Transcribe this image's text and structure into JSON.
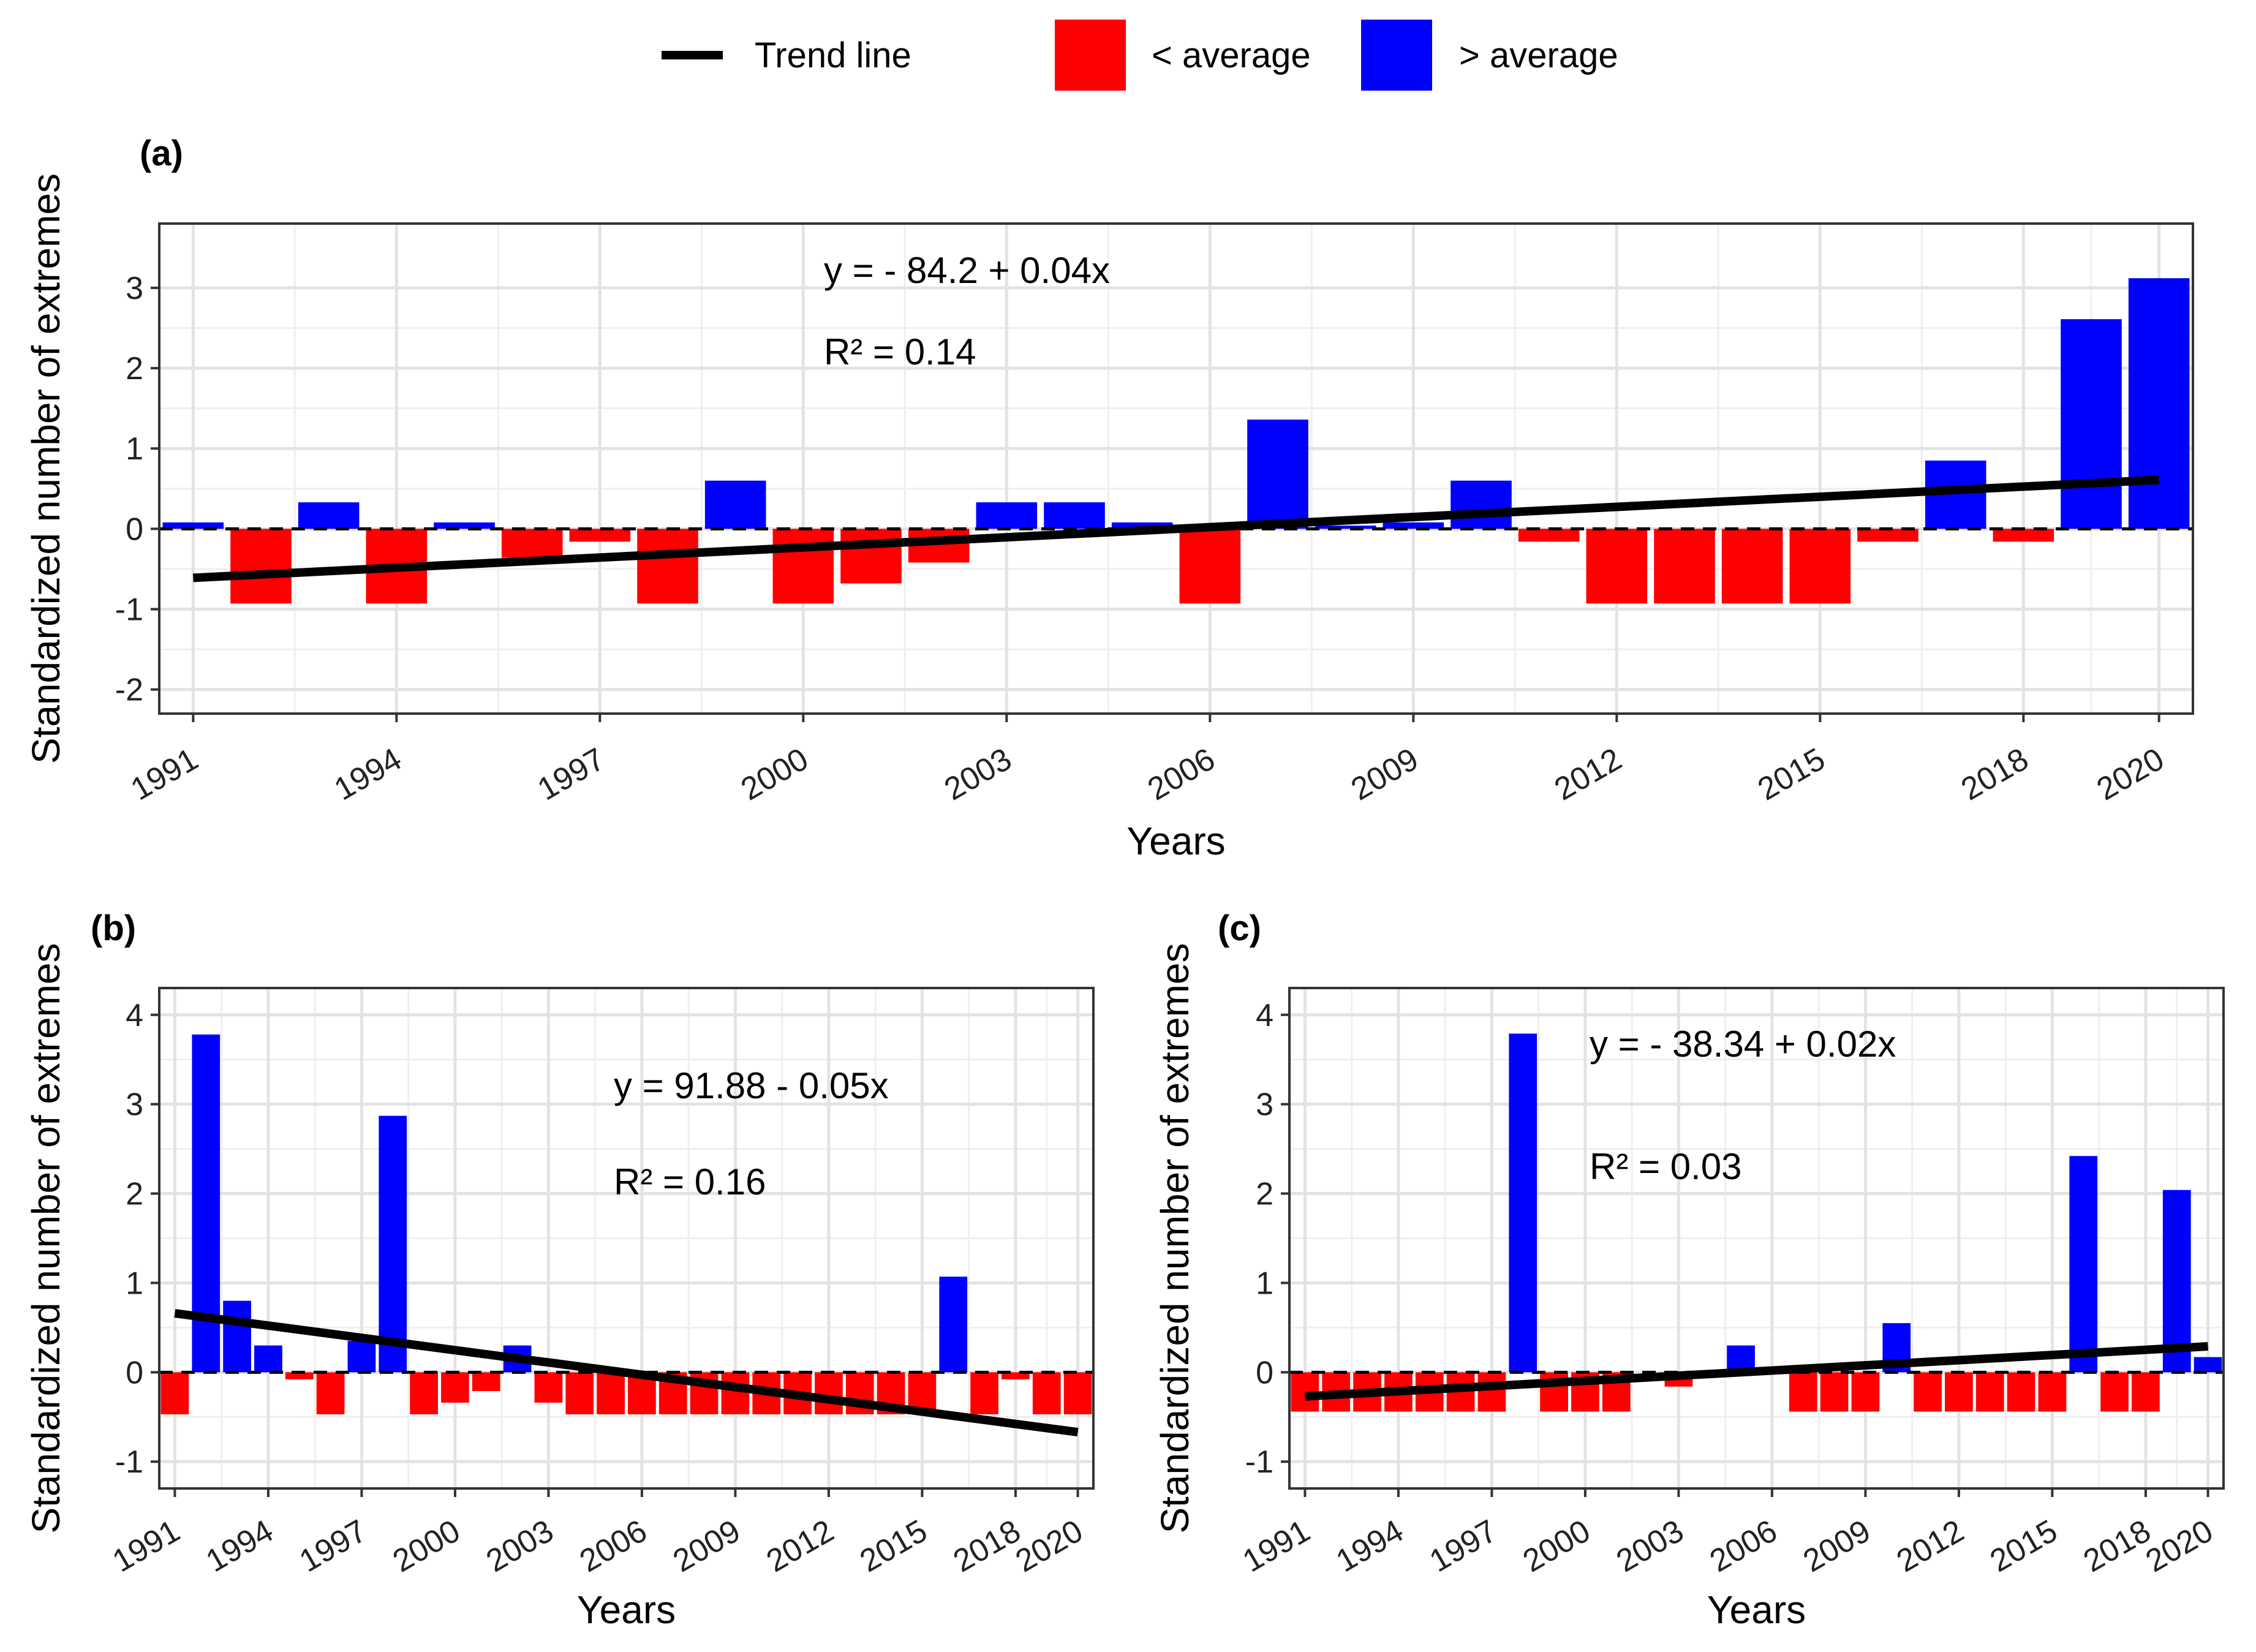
{
  "legend": {
    "trend_label": "Trend line",
    "below_label": "< average",
    "above_label": "> average",
    "trend_color": "#000000",
    "below_color": "#ff0000",
    "above_color": "#0000ff"
  },
  "chart_data": [
    {
      "type": "bar",
      "panel": "(a)",
      "xlabel": "Years",
      "ylabel": "Standardized number of extremes",
      "ylim": [
        -2.3,
        3.8
      ],
      "yticks": [
        -2,
        -1,
        0,
        1,
        2,
        3
      ],
      "xticks": [
        1991,
        1994,
        1997,
        2000,
        2003,
        2006,
        2009,
        2012,
        2015,
        2018,
        2020
      ],
      "years": [
        1991,
        1992,
        1993,
        1994,
        1995,
        1996,
        1997,
        1998,
        1999,
        2000,
        2001,
        2002,
        2003,
        2004,
        2005,
        2006,
        2007,
        2008,
        2009,
        2010,
        2011,
        2012,
        2013,
        2014,
        2015,
        2016,
        2017,
        2018,
        2019,
        2020
      ],
      "values": [
        0.08,
        -0.93,
        0.33,
        -0.93,
        0.08,
        -0.36,
        -0.16,
        -0.93,
        0.6,
        -0.93,
        -0.68,
        -0.42,
        0.33,
        0.33,
        0.08,
        -0.93,
        1.36,
        0.04,
        0.08,
        0.6,
        -0.16,
        -0.93,
        -0.93,
        -0.93,
        -0.93,
        -0.16,
        0.85,
        -0.16,
        2.61,
        3.12
      ],
      "trend": {
        "start": [
          1991,
          -0.61
        ],
        "end": [
          2020,
          0.61
        ]
      },
      "equation": "y = - 84.2 + 0.04x",
      "r2": "R² = 0.14"
    },
    {
      "type": "bar",
      "panel": "(b)",
      "xlabel": "Years",
      "ylabel": "Standardized number of extremes",
      "ylim": [
        -1.3,
        4.3
      ],
      "yticks": [
        -1,
        0,
        1,
        2,
        3,
        4
      ],
      "xticks": [
        1991,
        1994,
        1997,
        2000,
        2003,
        2006,
        2009,
        2012,
        2015,
        2018,
        2020
      ],
      "years": [
        1991,
        1992,
        1993,
        1994,
        1995,
        1996,
        1997,
        1998,
        1999,
        2000,
        2001,
        2002,
        2003,
        2004,
        2005,
        2006,
        2007,
        2008,
        2009,
        2010,
        2011,
        2012,
        2013,
        2014,
        2015,
        2016,
        2017,
        2018,
        2019,
        2020
      ],
      "values": [
        -0.47,
        3.78,
        0.8,
        0.3,
        -0.08,
        -0.47,
        0.35,
        2.87,
        -0.47,
        -0.34,
        -0.21,
        0.3,
        -0.34,
        -0.47,
        -0.47,
        -0.47,
        -0.47,
        -0.47,
        -0.47,
        -0.47,
        -0.47,
        -0.47,
        -0.47,
        -0.47,
        -0.47,
        1.07,
        -0.47,
        -0.08,
        -0.47,
        -0.47
      ],
      "trend": {
        "start": [
          1991,
          0.66
        ],
        "end": [
          2020,
          -0.67
        ]
      },
      "equation": "y = 91.88 - 0.05x",
      "r2": "R² = 0.16"
    },
    {
      "type": "bar",
      "panel": "(c)",
      "xlabel": "Years",
      "ylabel": "Standardized number of extremes",
      "ylim": [
        -1.3,
        4.3
      ],
      "yticks": [
        -1,
        0,
        1,
        2,
        3,
        4
      ],
      "xticks": [
        1991,
        1994,
        1997,
        2000,
        2003,
        2006,
        2009,
        2012,
        2015,
        2018,
        2020
      ],
      "years": [
        1991,
        1992,
        1993,
        1994,
        1995,
        1996,
        1997,
        1998,
        1999,
        2000,
        2001,
        2002,
        2003,
        2004,
        2005,
        2006,
        2007,
        2008,
        2009,
        2010,
        2011,
        2012,
        2013,
        2014,
        2015,
        2016,
        2017,
        2018,
        2019,
        2020
      ],
      "values": [
        -0.44,
        -0.44,
        -0.44,
        -0.44,
        -0.44,
        -0.44,
        -0.44,
        3.79,
        -0.44,
        -0.44,
        -0.44,
        0,
        -0.16,
        0,
        0.3,
        0,
        -0.44,
        -0.44,
        -0.44,
        0.55,
        -0.44,
        -0.44,
        -0.44,
        -0.44,
        -0.44,
        2.42,
        -0.44,
        -0.44,
        2.04,
        0.17
      ],
      "trend": {
        "start": [
          1991,
          -0.27
        ],
        "end": [
          2020,
          0.29
        ]
      },
      "equation": "y = - 38.34 + 0.02x",
      "r2": "R² = 0.03"
    }
  ]
}
